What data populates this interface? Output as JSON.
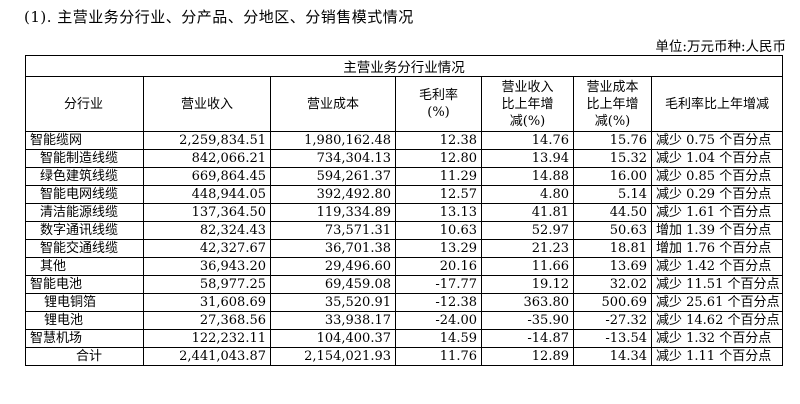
{
  "heading": "(1). 主营业务分行业、分产品、分地区、分销售模式情况",
  "unit": "单位:万元币种:人民币",
  "table": {
    "title": "主营业务分行业情况",
    "headers": {
      "industry": "分行业",
      "revenue": "营业收入",
      "cost": "营业成本",
      "margin": [
        "毛利率",
        "(%)"
      ],
      "revenue_change": [
        "营业收入",
        "比上年增",
        "减(%)"
      ],
      "cost_change": [
        "营业成本",
        "比上年增",
        "减(%)"
      ],
      "margin_change": "毛利率比上年增减"
    },
    "rows": [
      {
        "level": 1,
        "industry": "智能缆网",
        "revenue": "2,259,834.51",
        "cost": "1,980,162.48",
        "margin": "12.38",
        "revenue_change": "14.76",
        "cost_change": "15.76",
        "margin_change": "减少 0.75 个百分点"
      },
      {
        "level": 2,
        "industry": "智能制造线缆",
        "revenue": "842,066.21",
        "cost": "734,304.13",
        "margin": "12.80",
        "revenue_change": "13.94",
        "cost_change": "15.32",
        "margin_change": "减少 1.04 个百分点"
      },
      {
        "level": 2,
        "industry": "绿色建筑线缆",
        "revenue": "669,864.45",
        "cost": "594,261.37",
        "margin": "11.29",
        "revenue_change": "14.88",
        "cost_change": "16.00",
        "margin_change": "减少 0.85 个百分点"
      },
      {
        "level": 2,
        "industry": "智能电网线缆",
        "revenue": "448,944.05",
        "cost": "392,492.80",
        "margin": "12.57",
        "revenue_change": "4.80",
        "cost_change": "5.14",
        "margin_change": "减少 0.29 个百分点"
      },
      {
        "level": 2,
        "industry": "清洁能源线缆",
        "revenue": "137,364.50",
        "cost": "119,334.89",
        "margin": "13.13",
        "revenue_change": "41.81",
        "cost_change": "44.50",
        "margin_change": "减少 1.61 个百分点"
      },
      {
        "level": 2,
        "industry": "数字通讯线缆",
        "revenue": "82,324.43",
        "cost": "73,571.31",
        "margin": "10.63",
        "revenue_change": "52.97",
        "cost_change": "50.63",
        "margin_change": "增加 1.39 个百分点"
      },
      {
        "level": 2,
        "industry": "智能交通线缆",
        "revenue": "42,327.67",
        "cost": "36,701.38",
        "margin": "13.29",
        "revenue_change": "21.23",
        "cost_change": "18.81",
        "margin_change": "增加 1.76 个百分点"
      },
      {
        "level": 2,
        "industry": "其他",
        "revenue": "36,943.20",
        "cost": "29,496.60",
        "margin": "20.16",
        "revenue_change": "11.66",
        "cost_change": "13.69",
        "margin_change": "减少 1.42 个百分点"
      },
      {
        "level": 1,
        "industry": "智能电池",
        "revenue": "58,977.25",
        "cost": "69,459.08",
        "margin": "-17.77",
        "revenue_change": "19.12",
        "cost_change": "32.02",
        "margin_change": "减少 11.51 个百分点"
      },
      {
        "level": 3,
        "industry": "锂电铜箔",
        "revenue": "31,608.69",
        "cost": "35,520.91",
        "margin": "-12.38",
        "revenue_change": "363.80",
        "cost_change": "500.69",
        "margin_change": "减少 25.61 个百分点"
      },
      {
        "level": 3,
        "industry": "锂电池",
        "revenue": "27,368.56",
        "cost": "33,938.17",
        "margin": "-24.00",
        "revenue_change": "-35.90",
        "cost_change": "-27.32",
        "margin_change": "减少 14.62 个百分点"
      },
      {
        "level": 1,
        "industry": "智慧机场",
        "revenue": "122,232.11",
        "cost": "104,400.37",
        "margin": "14.59",
        "revenue_change": "-14.87",
        "cost_change": "-13.54",
        "margin_change": "减少 1.32 个百分点"
      },
      {
        "level": 0,
        "industry": "合计",
        "revenue": "2,441,043.87",
        "cost": "2,154,021.93",
        "margin": "11.76",
        "revenue_change": "12.89",
        "cost_change": "14.34",
        "margin_change": "减少 1.11 个百分点"
      }
    ]
  }
}
